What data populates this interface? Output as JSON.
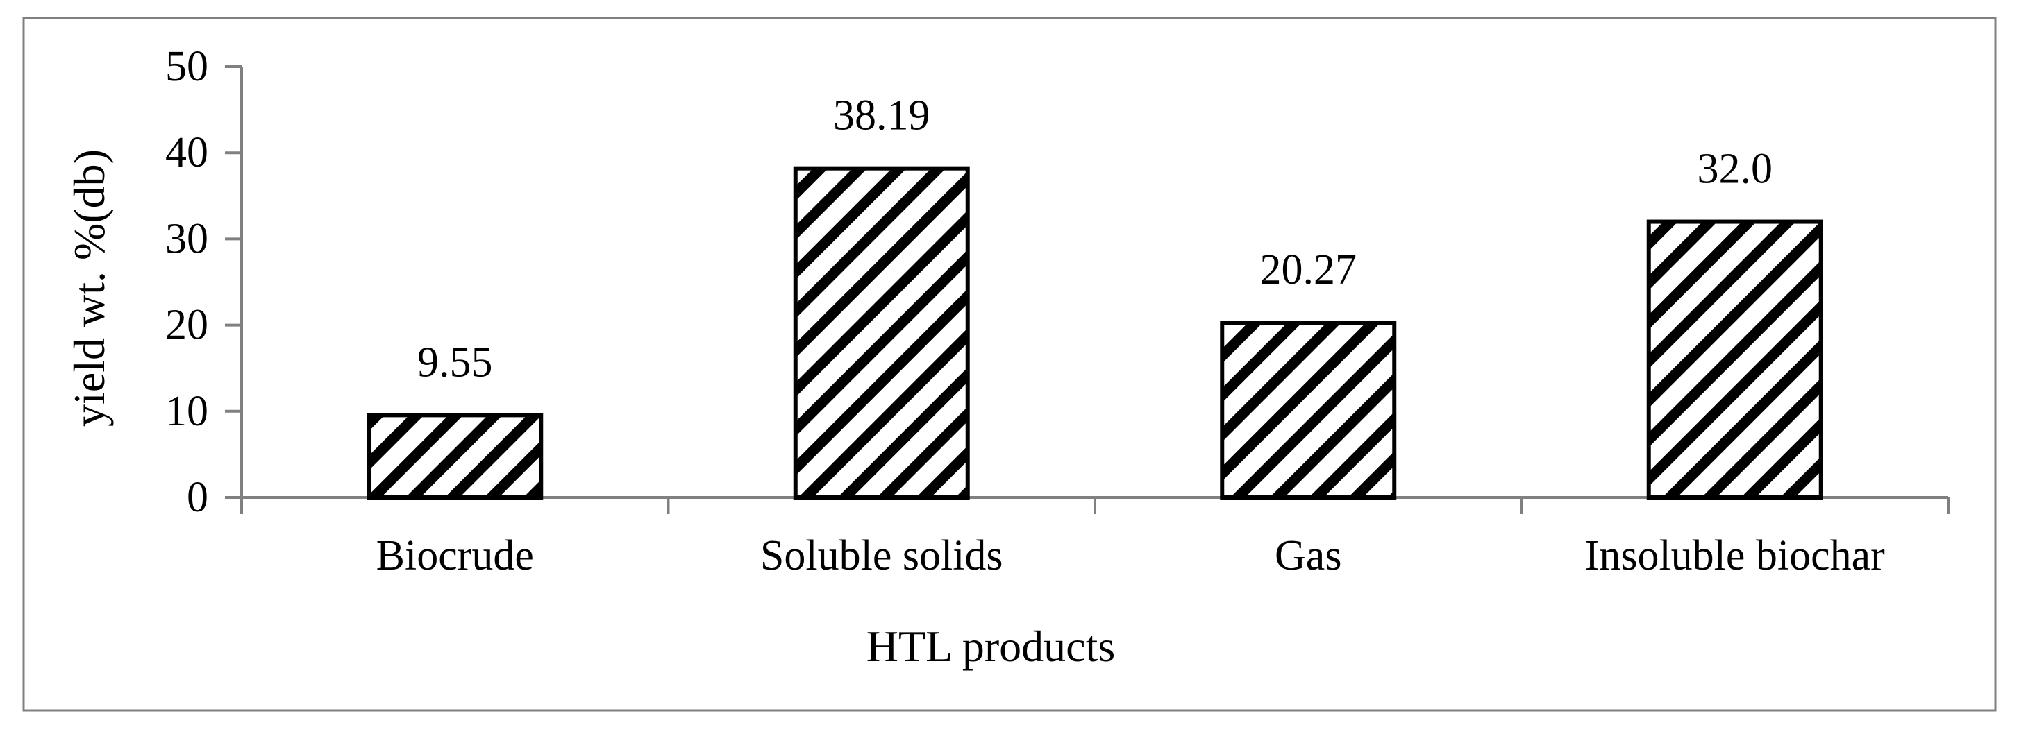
{
  "chart_data": {
    "type": "bar",
    "categories": [
      "Biocrude",
      "Soluble solids",
      "Gas",
      "Insoluble biochar"
    ],
    "values": [
      9.55,
      38.19,
      20.27,
      32.0
    ],
    "data_labels": [
      "9.55",
      "38.19",
      "20.27",
      "32.0"
    ],
    "title": "",
    "xlabel": "HTL products",
    "ylabel": "yield wt. %(db)",
    "ylim": [
      0,
      50
    ],
    "yticks": [
      0,
      10,
      20,
      30,
      40,
      50
    ],
    "ytick_labels": [
      "0",
      "10",
      "20",
      "30",
      "40",
      "50"
    ],
    "grid": false,
    "legend": "none",
    "bar_fill": "diagonal-hatch",
    "colors": {
      "bar_stroke": "#000000",
      "hatch": "#000000",
      "background": "#ffffff",
      "frame": "#808080",
      "axis": "#808080"
    }
  }
}
